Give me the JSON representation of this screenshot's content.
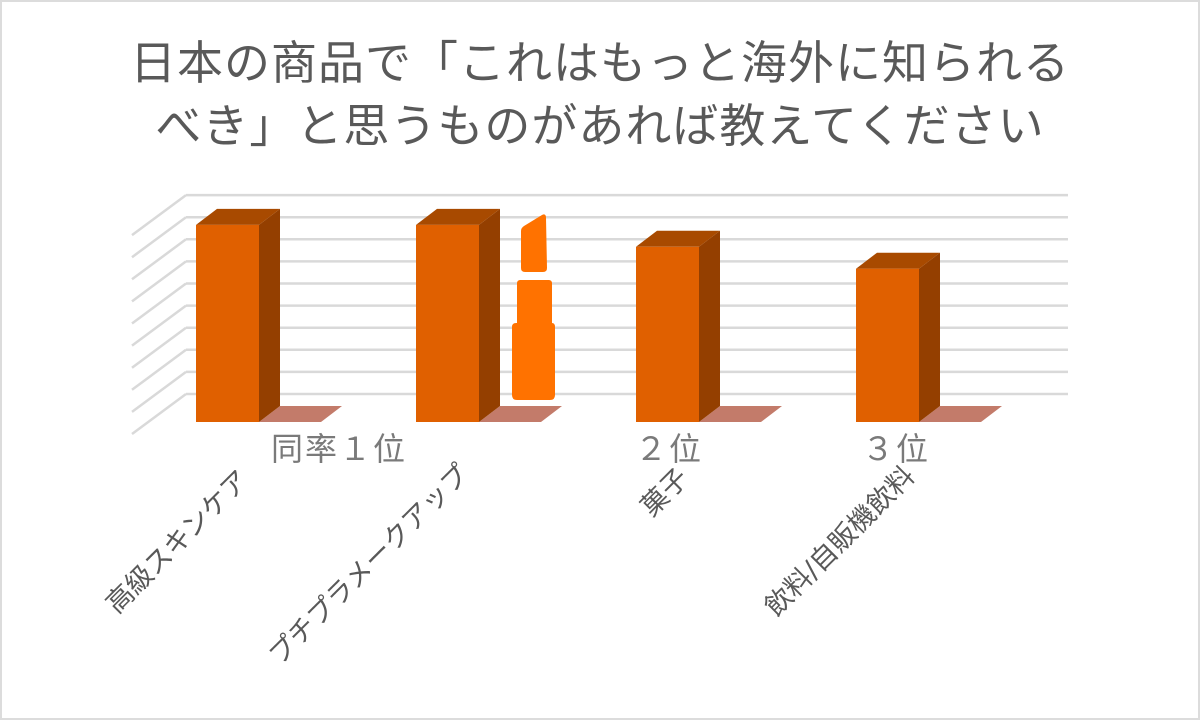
{
  "title": {
    "line1": "日本の商品で「これはもっと海外に知られる",
    "line2": "べき」と思うものがあれば教えてください"
  },
  "colors": {
    "bar_front": "#E06000",
    "bar_side": "#943F00",
    "bar_top": "#A84A00",
    "bar_shadow": "#C37B6A",
    "lipstick": "#FF7200",
    "gridline": "#D9D9D9",
    "text": "#595959"
  },
  "ranks": [
    {
      "label": "同率１位"
    },
    {
      "label": "２位"
    },
    {
      "label": "３位"
    }
  ],
  "categories": [
    {
      "label": "高級スキンケア"
    },
    {
      "label": "プチプラメークアップ"
    },
    {
      "label": "菓子"
    },
    {
      "label": "飲料/自販機飲料"
    }
  ],
  "decorations": {
    "lipstick_icon": "lipstick-icon"
  },
  "chart_data": {
    "type": "bar",
    "style": "3d-column",
    "title": "日本の商品で「これはもっと海外に知られるべき」と思うものがあれば教えてください",
    "categories": [
      "高級スキンケア",
      "プチプラメークアップ",
      "菓子",
      "飲料/自販機飲料"
    ],
    "values": [
      9,
      9,
      8,
      7
    ],
    "value_note": "relative heights estimated from gridlines (no axis values shown)",
    "annotations": [
      "同率１位",
      "２位",
      "３位"
    ],
    "xlabel": "",
    "ylabel": "",
    "grid": true,
    "gridline_count": 10,
    "legend": "none"
  }
}
